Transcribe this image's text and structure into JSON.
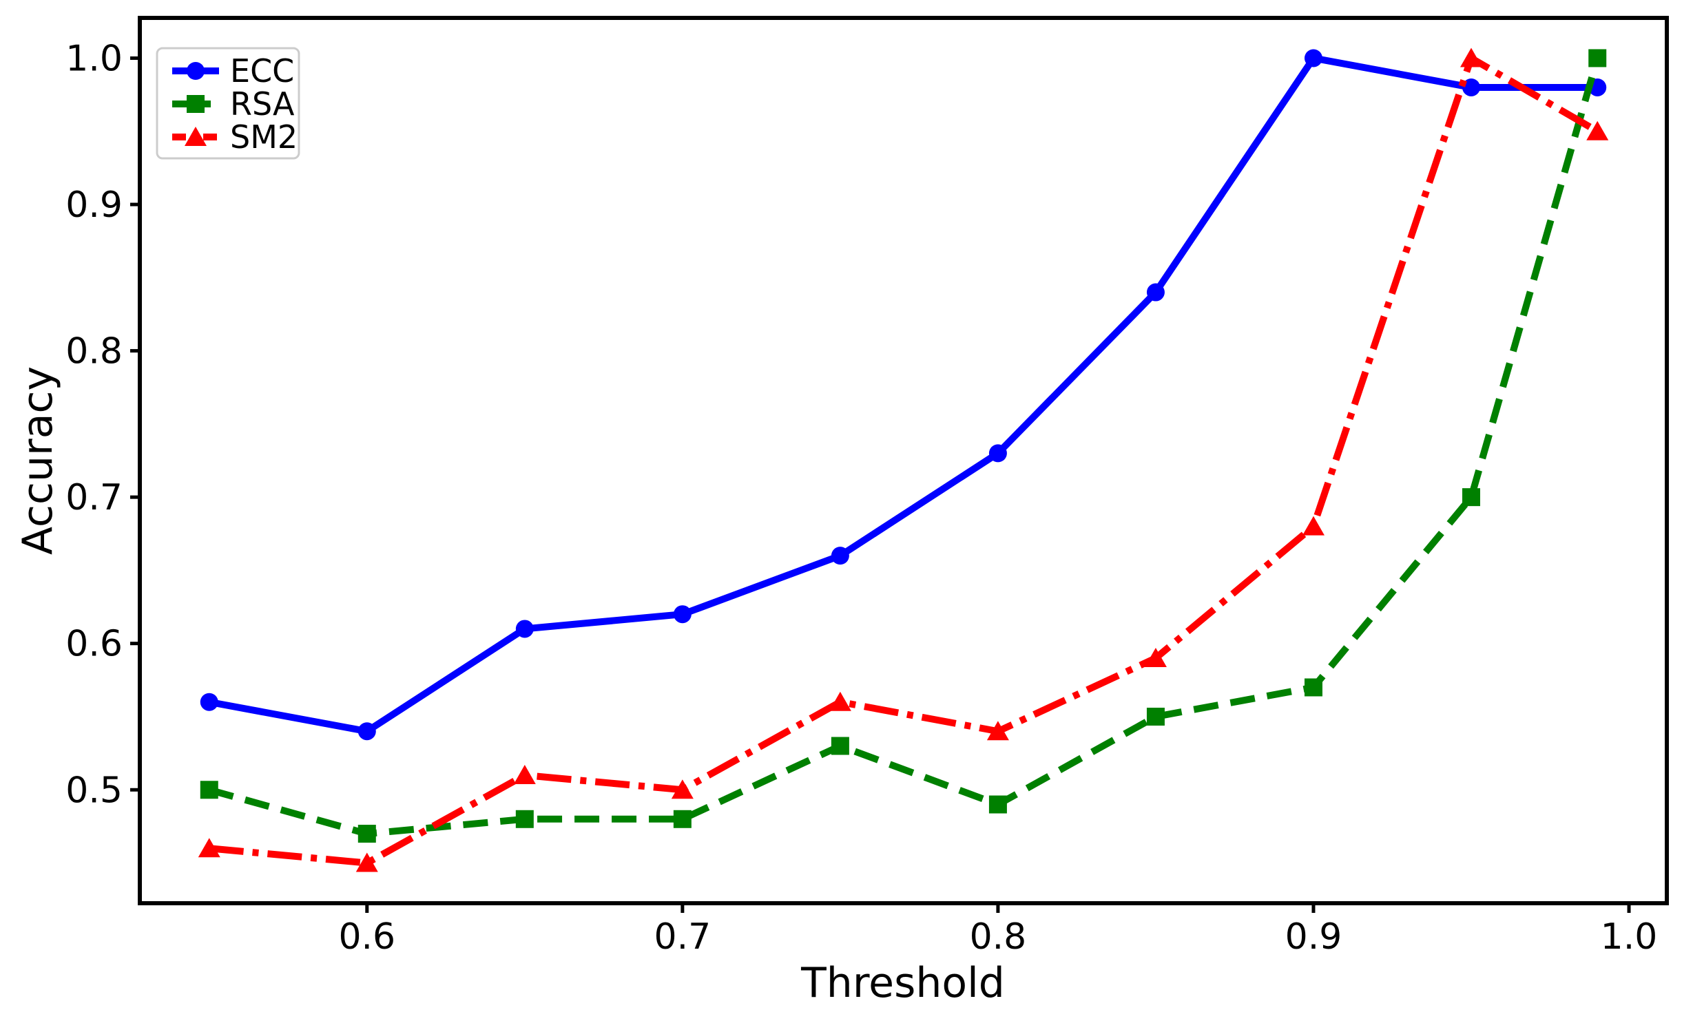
{
  "chart_data": {
    "type": "line",
    "title": "",
    "xlabel": "Threshold",
    "ylabel": "Accuracy",
    "x": [
      0.55,
      0.6,
      0.65,
      0.7,
      0.75,
      0.8,
      0.85,
      0.9,
      0.95,
      0.99
    ],
    "series": [
      {
        "name": "ECC",
        "color": "#0000FF",
        "linestyle": "solid",
        "marker": "circle",
        "values": [
          0.56,
          0.54,
          0.61,
          0.62,
          0.66,
          0.73,
          0.84,
          1.0,
          0.98,
          0.98
        ]
      },
      {
        "name": "RSA",
        "color": "#008000",
        "linestyle": "dashed",
        "marker": "square",
        "values": [
          0.5,
          0.47,
          0.48,
          0.48,
          0.53,
          0.49,
          0.55,
          0.57,
          0.7,
          1.0
        ]
      },
      {
        "name": "SM2",
        "color": "#FF0000",
        "linestyle": "dashdot",
        "marker": "triangle",
        "values": [
          0.46,
          0.45,
          0.51,
          0.5,
          0.56,
          0.54,
          0.59,
          0.68,
          1.0,
          0.95
        ]
      }
    ],
    "xticks": [
      0.6,
      0.7,
      0.8,
      0.9,
      1.0
    ],
    "yticks": [
      0.5,
      0.6,
      0.7,
      0.8,
      0.9,
      1.0
    ],
    "xlim": [
      0.528,
      1.012
    ],
    "ylim": [
      0.4225,
      1.0275
    ],
    "grid": false,
    "legend_position": "upper-left",
    "axis_color": "#000000",
    "background_color": "#FFFFFF",
    "legend_border_color": "#CCCCCC"
  }
}
